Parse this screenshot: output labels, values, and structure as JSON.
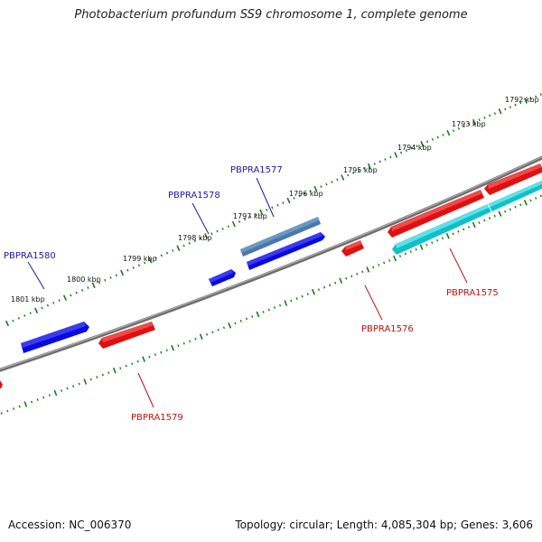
{
  "title": "Photobacterium profundum SS9 chromosome 1, complete genome",
  "footer": {
    "accession": "Accession: NC_006370",
    "summary": "Topology: circular; Length: 4,085,304 bp; Genes: 3,606"
  },
  "colors": {
    "backbone": "#7a7a7a",
    "tick": "#1a7a1a",
    "forward_gene": "#0a0ae0",
    "forward_highlight": "#4a78a8",
    "reverse_gene": "#e01010",
    "reverse_highlight": "#10c0c8",
    "forward_label": "#1a1aa0",
    "reverse_label": "#c01010"
  },
  "scale_labels": [
    "1792 kbp",
    "1793 kbp",
    "1794 kbp",
    "1795 kbp",
    "1796 kbp",
    "1797 kbp",
    "1798 kbp",
    "1799 kbp",
    "1800 kbp",
    "1801 kbp"
  ],
  "genes": [
    {
      "id": "PBPRA1575",
      "strand": "reverse"
    },
    {
      "id": "PBPRA1576",
      "strand": "reverse"
    },
    {
      "id": "PBPRA1577",
      "strand": "forward"
    },
    {
      "id": "PBPRA1578",
      "strand": "forward"
    },
    {
      "id": "PBPRA1579",
      "strand": "reverse"
    },
    {
      "id": "PBPRA1580",
      "strand": "forward"
    }
  ]
}
